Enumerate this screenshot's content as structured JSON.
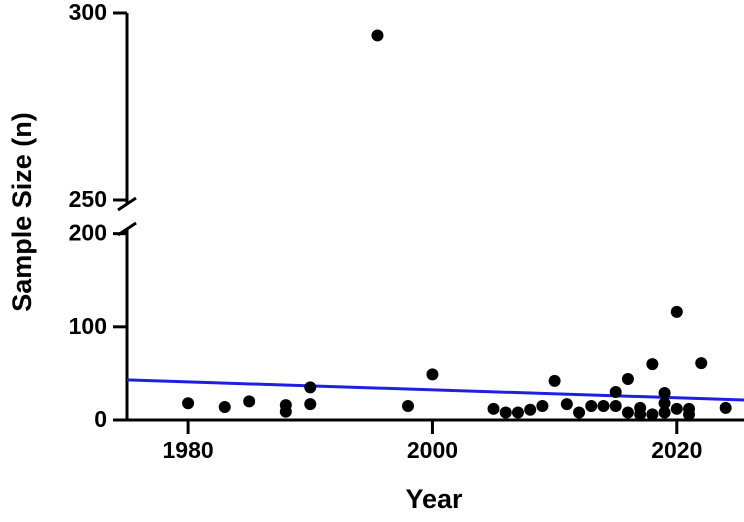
{
  "chart_data": {
    "type": "scatter",
    "x_label": "Year",
    "y_label": "Sample Size (n)",
    "xlim": [
      1975,
      2025.5
    ],
    "xticks": [
      1980,
      2000,
      2020
    ],
    "ylim": [
      0,
      300
    ],
    "ybreak": [
      205,
      250
    ],
    "yticks": [
      0,
      100,
      200,
      250,
      300
    ],
    "series": [
      {
        "color": "#000000",
        "x": [
          1980,
          1983,
          1985,
          1988,
          1988,
          1990,
          1990,
          1995.5,
          1998,
          2000,
          2005,
          2006,
          2007,
          2008,
          2009,
          2010,
          2011,
          2012,
          2013,
          2014,
          2015,
          2015,
          2016,
          2016,
          2017,
          2017,
          2018,
          2018,
          2019,
          2019,
          2019,
          2020,
          2020,
          2021,
          2021,
          2022,
          2024
        ],
        "values": [
          18,
          14,
          20,
          16,
          9,
          35,
          17,
          294,
          15,
          49,
          12,
          8,
          8,
          11,
          15,
          42,
          17,
          8,
          15,
          15,
          30,
          15,
          44,
          8,
          13,
          6,
          60,
          6,
          29,
          18,
          8,
          116,
          12,
          12,
          6,
          61,
          13
        ]
      }
    ],
    "trend": {
      "color": "#1f1fe0",
      "x": [
        1975,
        2025.5
      ],
      "values": [
        43,
        21.5
      ]
    }
  }
}
